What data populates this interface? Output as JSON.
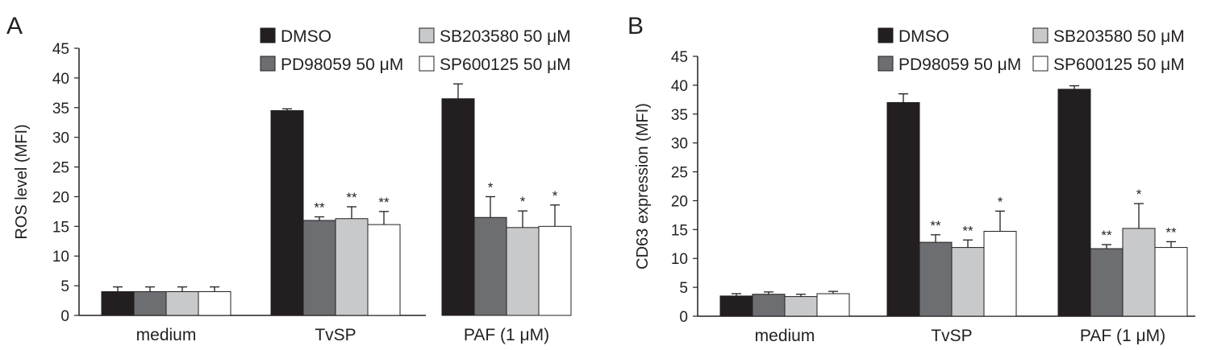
{
  "colors": {
    "axis": "#231f20",
    "series": [
      "#231f20",
      "#6d6e71",
      "#c8c9ca",
      "#ffffff"
    ]
  },
  "chart_data": [
    {
      "panel_label": "A",
      "type": "bar",
      "ylabel": "ROS level (MFI)",
      "xlabel": "",
      "ylim": [
        0,
        45
      ],
      "yticks": [
        "0",
        "5",
        "10",
        "15",
        "20",
        "25",
        "30",
        "35",
        "40",
        "45"
      ],
      "categories": [
        "medium",
        "TvSP",
        "PAF (1 μM)"
      ],
      "series": [
        {
          "name": "DMSO",
          "values": [
            4.0,
            34.5,
            36.5
          ],
          "errors": [
            0.8,
            0.3,
            2.5
          ],
          "significance": [
            "",
            "",
            ""
          ]
        },
        {
          "name": "PD98059 50 μM",
          "values": [
            4.0,
            16.0,
            16.5
          ],
          "errors": [
            0.8,
            0.6,
            3.5
          ],
          "significance": [
            "",
            "**",
            "*"
          ]
        },
        {
          "name": "SB203580 50 μM",
          "values": [
            4.0,
            16.3,
            14.8
          ],
          "errors": [
            0.8,
            2.0,
            2.8
          ],
          "significance": [
            "",
            "**",
            "*"
          ]
        },
        {
          "name": "SP600125 50 μM",
          "values": [
            4.0,
            15.3,
            15.0
          ],
          "errors": [
            0.8,
            2.2,
            3.6
          ],
          "significance": [
            "",
            "**",
            "*"
          ]
        }
      ],
      "legend_position": "top-right"
    },
    {
      "panel_label": "B",
      "type": "bar",
      "ylabel": "CD63 expression (MFI)",
      "xlabel": "",
      "ylim": [
        0,
        45
      ],
      "yticks": [
        "0",
        "5",
        "10",
        "15",
        "20",
        "25",
        "30",
        "35",
        "40",
        "45"
      ],
      "categories": [
        "medium",
        "TvSP",
        "PAF (1 μM)"
      ],
      "series": [
        {
          "name": "DMSO",
          "values": [
            3.5,
            37.0,
            39.3
          ],
          "errors": [
            0.4,
            1.5,
            0.6
          ],
          "significance": [
            "",
            "",
            ""
          ]
        },
        {
          "name": "PD98059 50 μM",
          "values": [
            3.8,
            12.8,
            11.7
          ],
          "errors": [
            0.4,
            1.3,
            0.7
          ],
          "significance": [
            "",
            "**",
            "**"
          ]
        },
        {
          "name": "SB203580 50 μM",
          "values": [
            3.4,
            11.9,
            15.2
          ],
          "errors": [
            0.4,
            1.3,
            4.3
          ],
          "significance": [
            "",
            "**",
            "*"
          ]
        },
        {
          "name": "SP600125 50 μM",
          "values": [
            3.9,
            14.7,
            11.9
          ],
          "errors": [
            0.4,
            3.5,
            1.0
          ],
          "significance": [
            "",
            "*",
            "**"
          ]
        }
      ],
      "legend_position": "top-right"
    }
  ]
}
